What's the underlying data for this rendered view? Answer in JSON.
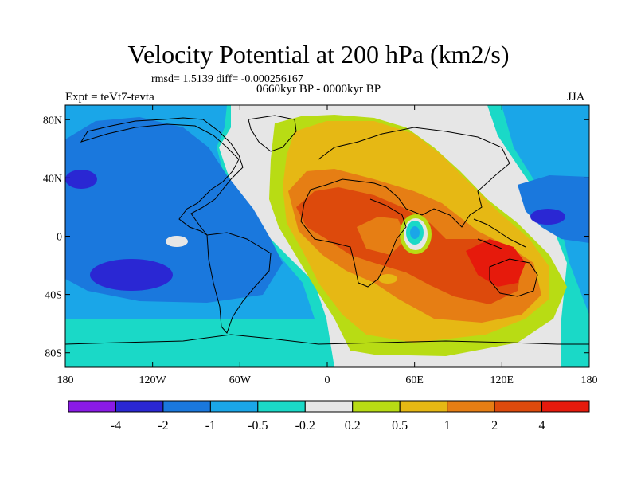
{
  "title": "Velocity Potential at 200 hPa (km2/s)",
  "stats": "rmsd= 1.5139 diff= -0.000256167",
  "period": "0660kyr BP - 0000kyr BP",
  "experiment": "Expt = teVt7-tevta",
  "season": "JJA",
  "map": {
    "lon_range": [
      -180,
      180
    ],
    "lat_range": [
      -90,
      90
    ],
    "y_ticks": [
      {
        "label": "80N",
        "lat": 80
      },
      {
        "label": "40N",
        "lat": 40
      },
      {
        "label": "0",
        "lat": 0
      },
      {
        "label": "40S",
        "lat": -40
      },
      {
        "label": "80S",
        "lat": -80
      }
    ],
    "x_ticks": [
      {
        "label": "180",
        "lon": -180
      },
      {
        "label": "120W",
        "lon": -120
      },
      {
        "label": "60W",
        "lon": -60
      },
      {
        "label": "0",
        "lon": 0
      },
      {
        "label": "60E",
        "lon": 60
      },
      {
        "label": "120E",
        "lon": 120
      },
      {
        "label": "180",
        "lon": 180
      }
    ]
  },
  "colorbar": {
    "colors": [
      "#8a1ae6",
      "#2a27d3",
      "#1a78dd",
      "#1aa6e8",
      "#1ad9c7",
      "#e6e6e6",
      "#b8dc14",
      "#e6b814",
      "#e67e14",
      "#dd4a0c",
      "#e61a0c"
    ],
    "labels": [
      "-4",
      "-2",
      "-1",
      "-0.5",
      "-0.2",
      "0.2",
      "0.5",
      "1",
      "2",
      "4"
    ]
  }
}
